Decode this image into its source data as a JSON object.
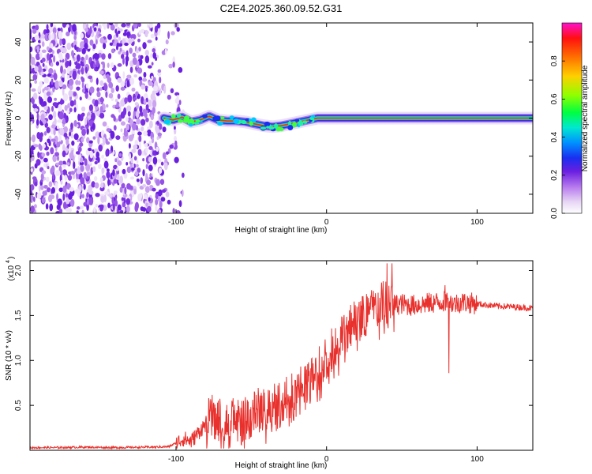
{
  "title": "C2E4.2025.360.09.52.G31",
  "chart_data": [
    {
      "type": "heatmap",
      "title": "C2E4.2025.360.09.52.G31",
      "xlabel": "Height of straight line (km)",
      "ylabel": "Frequency (Hz)",
      "xlim": [
        -197,
        137
      ],
      "ylim": [
        -50,
        50
      ],
      "xticks": [
        -100,
        0,
        100
      ],
      "yticks": [
        -40,
        -20,
        0,
        20,
        40
      ],
      "ridge_points": [
        [
          -108,
          0
        ],
        [
          -102,
          -1
        ],
        [
          -96,
          0.5
        ],
        [
          -90,
          -2
        ],
        [
          -84,
          -1
        ],
        [
          -78,
          1
        ],
        [
          -72,
          -1
        ],
        [
          -66,
          -1.5
        ],
        [
          -60,
          -1.5
        ],
        [
          -54,
          -2
        ],
        [
          -48,
          -3
        ],
        [
          -42,
          -4
        ],
        [
          -36,
          -4.5
        ],
        [
          -30,
          -4
        ],
        [
          -24,
          -3
        ],
        [
          -18,
          -2
        ],
        [
          -12,
          -1
        ],
        [
          -6,
          0
        ],
        [
          0,
          0
        ],
        [
          6,
          0
        ],
        [
          12,
          0
        ],
        [
          30,
          0
        ],
        [
          60,
          0
        ],
        [
          90,
          0
        ],
        [
          120,
          0
        ],
        [
          137,
          0
        ]
      ],
      "noise_region": {
        "x_from": -197,
        "x_to": -95,
        "description": "scattered low-amplitude speckle"
      },
      "colorbar": {
        "label": "Normalized spectral amplitude",
        "range": [
          0,
          1
        ],
        "ticks": [
          0.0,
          0.2,
          0.4,
          0.6,
          0.8
        ],
        "tick_labels": [
          "0.0",
          "0.2",
          "0.4",
          "0.6",
          "0.8"
        ],
        "colors": [
          "#ffffff",
          "#e6d6f4",
          "#c89ef0",
          "#9d5ee8",
          "#6a1fe0",
          "#2f20d8",
          "#1240ff",
          "#00a0ff",
          "#00e8c8",
          "#00ff40",
          "#60ff00",
          "#d8ff00",
          "#ffd000",
          "#ff8000",
          "#ff2000",
          "#e00000",
          "#ff00ff"
        ]
      }
    },
    {
      "type": "line",
      "xlabel": "Height of straight line (km)",
      "ylabel": "SNR (10 * v/v)",
      "scale_note": "(x10",
      "scale_exponent": "4",
      "xlim": [
        -197,
        137
      ],
      "ylim": [
        0,
        21100
      ],
      "xticks": [
        -100,
        0,
        100
      ],
      "yticks": [
        5000,
        10000,
        15000,
        20000
      ],
      "ytick_labels": [
        "0.5",
        "1.0",
        "1.5",
        "2.0"
      ],
      "line_color": "#e8302c",
      "series": [
        {
          "name": "SNR",
          "x": [
            -197,
            -180,
            -160,
            -140,
            -120,
            -105,
            -100,
            -95,
            -90,
            -85,
            -80,
            -75,
            -70,
            -65,
            -60,
            -55,
            -50,
            -45,
            -40,
            -35,
            -30,
            -25,
            -20,
            -15,
            -10,
            -5,
            0,
            5,
            10,
            15,
            20,
            25,
            30,
            35,
            40,
            45,
            50,
            55,
            60,
            65,
            70,
            75,
            80,
            85,
            90,
            95,
            100,
            110,
            120,
            130,
            137
          ],
          "y": [
            300,
            300,
            350,
            300,
            350,
            400,
            800,
            1300,
            1000,
            2000,
            3000,
            3800,
            3000,
            3500,
            3000,
            3200,
            4000,
            4500,
            4500,
            5500,
            5000,
            6000,
            6500,
            7000,
            8000,
            9000,
            10500,
            11500,
            12500,
            13500,
            14500,
            15000,
            15500,
            16000,
            16500,
            16200,
            16300,
            16100,
            16200,
            16300,
            16400,
            16500,
            16600,
            16300,
            16500,
            16400,
            16300,
            16100,
            16000,
            15900,
            15800
          ]
        }
      ]
    }
  ]
}
